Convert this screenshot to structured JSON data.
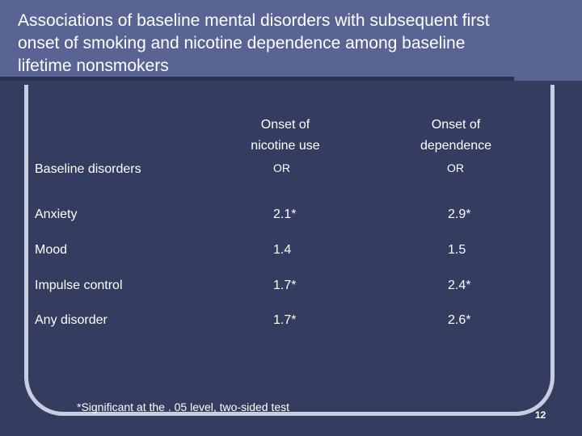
{
  "slide": {
    "title": "Associations of baseline mental disorders with subsequent first onset of smoking and nicotine dependence among baseline lifetime nonsmokers",
    "page_number": "12",
    "footnote": "*Significant at the . 05 level, two-sided test"
  },
  "table": {
    "col_headers": [
      {
        "line1": "Onset of",
        "line2": "nicotine use",
        "sub": "OR"
      },
      {
        "line1": "Onset of",
        "line2": "dependence",
        "sub": "OR"
      }
    ],
    "row_header": "Baseline disorders",
    "rows": [
      {
        "label": "Anxiety",
        "values": [
          "2.1*",
          "2.9*"
        ]
      },
      {
        "label": "Mood",
        "values": [
          "1.4",
          "1.5"
        ]
      },
      {
        "label": "Impulse control",
        "values": [
          "1.7*",
          "2.4*"
        ]
      },
      {
        "label": "Any disorder",
        "values": [
          "1.7*",
          "2.6*"
        ]
      }
    ]
  }
}
